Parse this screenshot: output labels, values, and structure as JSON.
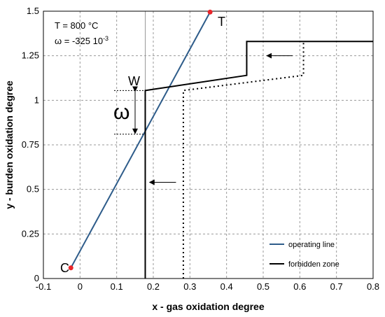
{
  "chart_data": {
    "type": "line",
    "xlabel": "x - gas oxidation degree",
    "ylabel": "y - burden oxidation degree",
    "xlim": [
      -0.1,
      0.8
    ],
    "ylim": [
      0,
      1.5
    ],
    "xticks": [
      "-0.1",
      "0",
      "0.1",
      "0.2",
      "0.3",
      "0.4",
      "0.5",
      "0.6",
      "0.7",
      "0.8"
    ],
    "yticks": [
      "0",
      "0.25",
      "0.5",
      "0.75",
      "1",
      "1.25",
      "1.5"
    ],
    "grid": true,
    "legend_position": "bottom-right",
    "series": [
      {
        "name": "operating line",
        "color": "#2e5c8a",
        "style": "solid",
        "points": [
          [
            -0.025,
            0.06
          ],
          [
            0.355,
            1.495
          ]
        ]
      },
      {
        "name": "forbidden zone",
        "color": "#000000",
        "style": "solid",
        "points": [
          [
            0.178,
            0
          ],
          [
            0.178,
            1.055
          ],
          [
            0.455,
            1.14
          ],
          [
            0.455,
            1.33
          ],
          [
            0.8,
            1.33
          ]
        ]
      },
      {
        "name": "",
        "color": "#000000",
        "style": "dotted",
        "points": [
          [
            0.282,
            0
          ],
          [
            0.282,
            1.055
          ],
          [
            0.61,
            1.14
          ],
          [
            0.61,
            1.33
          ]
        ]
      }
    ],
    "points": [
      {
        "label": "C",
        "x": -0.025,
        "y": 0.06,
        "color": "#e8262b"
      },
      {
        "label": "T",
        "x": 0.355,
        "y": 1.495,
        "color": "#e8262b"
      }
    ],
    "annotations": {
      "temperature": "T = 800 °C",
      "omega_base": "ω = -325 10",
      "omega_exp": "-3",
      "w_label": "W",
      "omega_symbol": "ω"
    },
    "omega_span": {
      "x": 0.178,
      "y_top": 1.055,
      "y_bottom": 0.81
    },
    "arrows": [
      {
        "from": [
          0.262,
          0.54
        ],
        "to": [
          0.19,
          0.54
        ]
      },
      {
        "from": [
          0.58,
          1.25
        ],
        "to": [
          0.51,
          1.25
        ]
      }
    ],
    "vertical_reference_x": 0.178
  }
}
